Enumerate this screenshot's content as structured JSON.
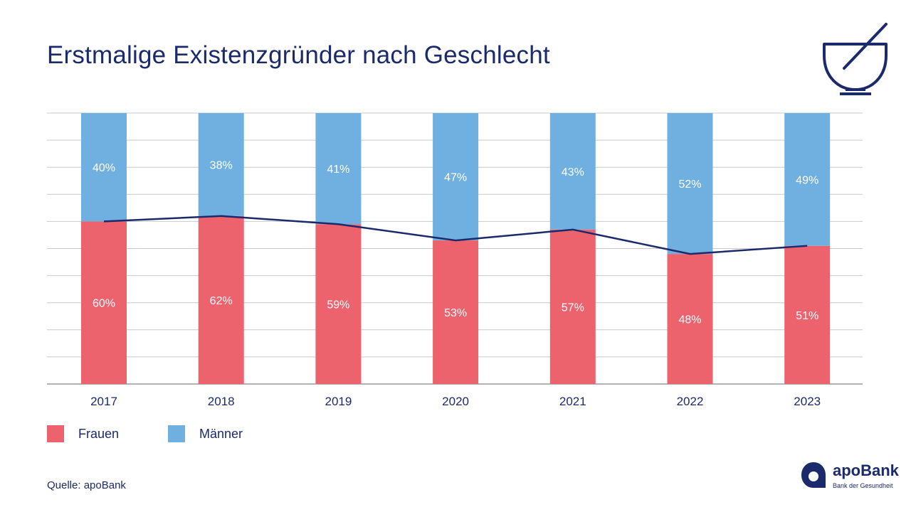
{
  "title": "Erstmalige Existenzgründer nach Geschlecht",
  "source": "Quelle: apoBank",
  "logo": {
    "brand": "apoBank",
    "tagline": "Bank der Gesundheit"
  },
  "legend": [
    {
      "name": "Frauen",
      "color": "#ec636e"
    },
    {
      "name": "Männer",
      "color": "#6fb0e0"
    }
  ],
  "colors": {
    "frauen": "#ec636e",
    "maenner": "#6fb0e0",
    "line": "#1b2a6b",
    "grid": "#c9c9c9",
    "text": "#1b2a6b"
  },
  "icons": {
    "mortar": "mortar-pestle-icon",
    "logo": "apobank-logo-icon"
  },
  "chart_data": {
    "type": "bar",
    "stacked": true,
    "title": "Erstmalige Existenzgründer nach Geschlecht",
    "categories": [
      "2017",
      "2018",
      "2019",
      "2020",
      "2021",
      "2022",
      "2023"
    ],
    "series": [
      {
        "name": "Frauen",
        "values": [
          60,
          62,
          59,
          53,
          57,
          48,
          51
        ],
        "labels": [
          "60%",
          "62%",
          "59%",
          "53%",
          "57%",
          "48%",
          "51%"
        ]
      },
      {
        "name": "Männer",
        "values": [
          40,
          38,
          41,
          47,
          43,
          52,
          49
        ],
        "labels": [
          "40%",
          "38%",
          "41%",
          "47%",
          "43%",
          "52%",
          "49%"
        ]
      }
    ],
    "line_series": {
      "name": "Frauen",
      "values": [
        60,
        62,
        59,
        53,
        57,
        48,
        51
      ]
    },
    "ylim": [
      0,
      100
    ],
    "gridlines": 10,
    "xlabel": "",
    "ylabel": "",
    "legend_position": "bottom-left"
  }
}
